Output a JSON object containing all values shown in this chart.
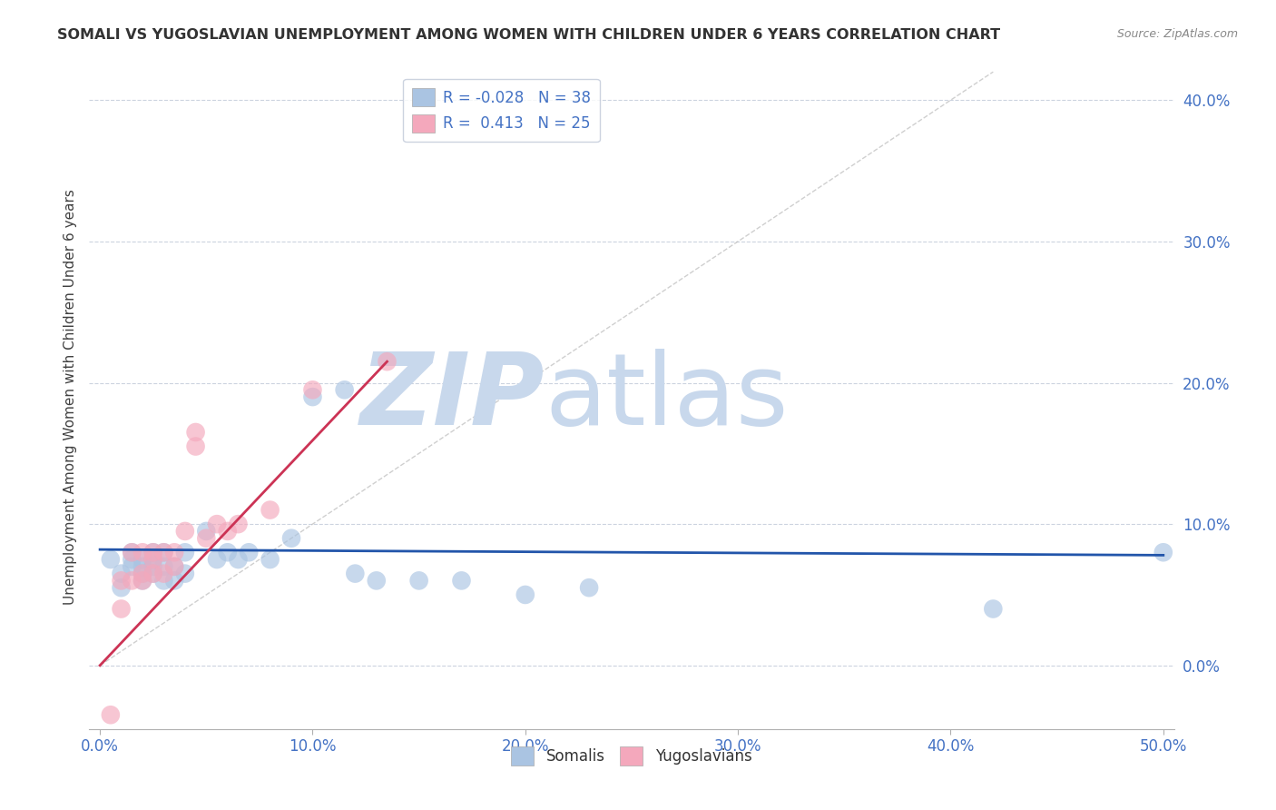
{
  "title": "SOMALI VS YUGOSLAVIAN UNEMPLOYMENT AMONG WOMEN WITH CHILDREN UNDER 6 YEARS CORRELATION CHART",
  "source": "Source: ZipAtlas.com",
  "ylabel": "Unemployment Among Women with Children Under 6 years",
  "xlim": [
    -0.005,
    0.505
  ],
  "ylim": [
    -0.045,
    0.425
  ],
  "xticks": [
    0.0,
    0.1,
    0.2,
    0.3,
    0.4,
    0.5
  ],
  "xticklabels": [
    "0.0%",
    "10.0%",
    "20.0%",
    "30.0%",
    "40.0%",
    "50.0%"
  ],
  "yticks": [
    0.0,
    0.1,
    0.2,
    0.3,
    0.4
  ],
  "yticklabels": [
    "0.0%",
    "10.0%",
    "20.0%",
    "30.0%",
    "40.0%"
  ],
  "somali_R": -0.028,
  "somali_N": 38,
  "yugoslav_R": 0.413,
  "yugoslav_N": 25,
  "somali_color": "#aac4e2",
  "yugoslav_color": "#f4a8bc",
  "somali_line_color": "#2255aa",
  "yugoslav_line_color": "#cc3355",
  "diagonal_color": "#bbbbbb",
  "watermark_zip": "ZIP",
  "watermark_atlas": "atlas",
  "watermark_color": "#c8d8ec",
  "somali_x": [
    0.005,
    0.01,
    0.01,
    0.015,
    0.015,
    0.015,
    0.02,
    0.02,
    0.02,
    0.02,
    0.025,
    0.025,
    0.025,
    0.025,
    0.03,
    0.03,
    0.03,
    0.035,
    0.035,
    0.04,
    0.04,
    0.05,
    0.055,
    0.06,
    0.065,
    0.07,
    0.08,
    0.09,
    0.1,
    0.115,
    0.12,
    0.13,
    0.15,
    0.17,
    0.2,
    0.23,
    0.42,
    0.5
  ],
  "somali_y": [
    0.075,
    0.055,
    0.065,
    0.07,
    0.075,
    0.08,
    0.06,
    0.065,
    0.07,
    0.075,
    0.065,
    0.07,
    0.075,
    0.08,
    0.06,
    0.07,
    0.08,
    0.06,
    0.07,
    0.065,
    0.08,
    0.095,
    0.075,
    0.08,
    0.075,
    0.08,
    0.075,
    0.09,
    0.19,
    0.195,
    0.065,
    0.06,
    0.06,
    0.06,
    0.05,
    0.055,
    0.04,
    0.08
  ],
  "yugoslav_x": [
    0.005,
    0.01,
    0.01,
    0.015,
    0.015,
    0.02,
    0.02,
    0.02,
    0.025,
    0.025,
    0.025,
    0.03,
    0.03,
    0.035,
    0.035,
    0.04,
    0.045,
    0.045,
    0.05,
    0.055,
    0.06,
    0.065,
    0.08,
    0.1,
    0.135
  ],
  "yugoslav_y": [
    -0.035,
    0.04,
    0.06,
    0.06,
    0.08,
    0.06,
    0.065,
    0.08,
    0.065,
    0.075,
    0.08,
    0.065,
    0.08,
    0.07,
    0.08,
    0.095,
    0.155,
    0.165,
    0.09,
    0.1,
    0.095,
    0.1,
    0.11,
    0.195,
    0.215
  ],
  "somali_line_x0": 0.0,
  "somali_line_x1": 0.5,
  "somali_line_y0": 0.082,
  "somali_line_y1": 0.078,
  "yugoslav_line_x0": 0.0,
  "yugoslav_line_x1": 0.135,
  "yugoslav_line_y0": 0.0,
  "yugoslav_line_y1": 0.215
}
